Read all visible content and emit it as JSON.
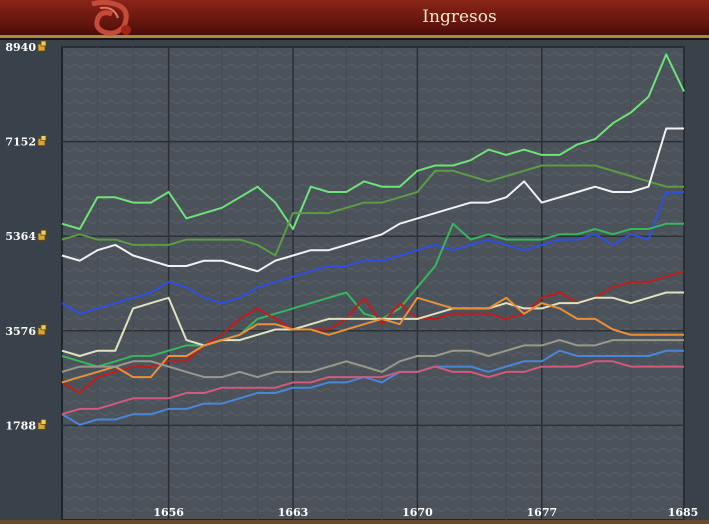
{
  "window": {
    "title": "Ingresos"
  },
  "chart_data": {
    "type": "line",
    "title": "Ingresos",
    "xlabel": "",
    "ylabel": "",
    "xlim": [
      1650,
      1685
    ],
    "ylim": [
      0,
      8940
    ],
    "x_ticks": [
      1656,
      1663,
      1670,
      1677,
      1685
    ],
    "y_ticks": [
      1788,
      3576,
      5364,
      7152,
      8940
    ],
    "y_tick_labels": [
      "1788",
      "3576",
      "5364",
      "7152",
      "8940"
    ],
    "x_tick_labels": [
      "1656",
      "1663",
      "1670",
      "1677",
      "1685"
    ],
    "grid": true,
    "legend": "none",
    "y_icon": "gold-coin-icon",
    "x": [
      1650,
      1651,
      1652,
      1653,
      1654,
      1655,
      1656,
      1657,
      1658,
      1659,
      1660,
      1661,
      1662,
      1663,
      1664,
      1665,
      1666,
      1667,
      1668,
      1669,
      1670,
      1671,
      1672,
      1673,
      1674,
      1675,
      1676,
      1677,
      1678,
      1679,
      1680,
      1681,
      1682,
      1683,
      1684,
      1685
    ],
    "series": [
      {
        "color": "#6fe27a",
        "values": [
          5600,
          5500,
          6100,
          6100,
          6000,
          6000,
          6200,
          5700,
          5800,
          5900,
          6100,
          6300,
          6000,
          5500,
          6300,
          6200,
          6200,
          6400,
          6300,
          6300,
          6600,
          6700,
          6700,
          6800,
          7000,
          6900,
          7000,
          6900,
          6900,
          7100,
          7200,
          7500,
          7700,
          8000,
          8800,
          8100
        ]
      },
      {
        "color": "#5c9c46",
        "values": [
          5300,
          5400,
          5300,
          5300,
          5200,
          5200,
          5200,
          5300,
          5300,
          5300,
          5300,
          5200,
          5000,
          5800,
          5800,
          5800,
          5900,
          6000,
          6000,
          6100,
          6200,
          6600,
          6600,
          6500,
          6400,
          6500,
          6600,
          6700,
          6700,
          6700,
          6700,
          6600,
          6500,
          6400,
          6300,
          6300
        ]
      },
      {
        "color": "#f2f2f2",
        "values": [
          5000,
          4900,
          5100,
          5200,
          5000,
          4900,
          4800,
          4800,
          4900,
          4900,
          4800,
          4700,
          4900,
          5000,
          5100,
          5100,
          5200,
          5300,
          5400,
          5600,
          5700,
          5800,
          5900,
          6000,
          6000,
          6100,
          6400,
          6000,
          6100,
          6200,
          6300,
          6200,
          6200,
          6300,
          7400,
          7400
        ]
      },
      {
        "color": "#2e4fe0",
        "values": [
          4100,
          3900,
          4000,
          4100,
          4200,
          4300,
          4500,
          4400,
          4200,
          4100,
          4200,
          4400,
          4500,
          4600,
          4700,
          4800,
          4800,
          4900,
          4900,
          5000,
          5100,
          5200,
          5100,
          5200,
          5300,
          5200,
          5100,
          5200,
          5300,
          5300,
          5400,
          5200,
          5400,
          5300,
          6200,
          6200
        ]
      },
      {
        "color": "#38b55e",
        "values": [
          3100,
          3000,
          2900,
          3000,
          3100,
          3100,
          3200,
          3300,
          3300,
          3400,
          3500,
          3800,
          3900,
          4000,
          4100,
          4200,
          4300,
          3900,
          3800,
          4000,
          4400,
          4800,
          5600,
          5300,
          5400,
          5300,
          5300,
          5300,
          5400,
          5400,
          5500,
          5400,
          5500,
          5500,
          5600,
          5600
        ]
      },
      {
        "color": "#c01d1d",
        "values": [
          2600,
          2400,
          2700,
          2800,
          2900,
          2900,
          3000,
          3000,
          3300,
          3500,
          3800,
          4000,
          3800,
          3600,
          3600,
          3600,
          3800,
          4200,
          3700,
          4100,
          3800,
          3800,
          3900,
          3900,
          3900,
          3800,
          3900,
          4200,
          4300,
          4100,
          4200,
          4400,
          4500,
          4500,
          4600,
          4700
        ]
      },
      {
        "color": "#e2e2c0",
        "values": [
          3200,
          3100,
          3200,
          3200,
          4000,
          4100,
          4200,
          3400,
          3300,
          3400,
          3400,
          3500,
          3600,
          3600,
          3700,
          3800,
          3800,
          3800,
          3800,
          3800,
          3800,
          3900,
          4000,
          4000,
          4000,
          4100,
          4000,
          4000,
          4100,
          4100,
          4200,
          4200,
          4100,
          4200,
          4300,
          4300
        ]
      },
      {
        "color": "#e8903a",
        "values": [
          2600,
          2700,
          2800,
          2900,
          2700,
          2700,
          3100,
          3100,
          3300,
          3400,
          3500,
          3700,
          3700,
          3600,
          3600,
          3500,
          3600,
          3700,
          3800,
          3700,
          4200,
          4100,
          4000,
          4000,
          4000,
          4200,
          3900,
          4100,
          4000,
          3800,
          3800,
          3600,
          3500,
          3500,
          3500,
          3500
        ]
      },
      {
        "color": "#9a9a8a",
        "values": [
          2800,
          2900,
          2900,
          2900,
          3000,
          3000,
          2900,
          2800,
          2700,
          2700,
          2800,
          2700,
          2800,
          2800,
          2800,
          2900,
          3000,
          2900,
          2800,
          3000,
          3100,
          3100,
          3200,
          3200,
          3100,
          3200,
          3300,
          3300,
          3400,
          3300,
          3300,
          3400,
          3400,
          3400,
          3400,
          3400
        ]
      },
      {
        "color": "#4a86d8",
        "values": [
          2000,
          1800,
          1900,
          1900,
          2000,
          2000,
          2100,
          2100,
          2200,
          2200,
          2300,
          2400,
          2400,
          2500,
          2500,
          2600,
          2600,
          2700,
          2600,
          2800,
          2800,
          2900,
          2900,
          2900,
          2800,
          2900,
          3000,
          3000,
          3200,
          3100,
          3100,
          3100,
          3100,
          3100,
          3200,
          3200
        ]
      },
      {
        "color": "#d25a7a",
        "values": [
          2000,
          2100,
          2100,
          2200,
          2300,
          2300,
          2300,
          2400,
          2400,
          2500,
          2500,
          2500,
          2500,
          2600,
          2600,
          2700,
          2700,
          2700,
          2700,
          2800,
          2800,
          2900,
          2800,
          2800,
          2700,
          2800,
          2800,
          2900,
          2900,
          2900,
          3000,
          3000,
          2900,
          2900,
          2900,
          2900
        ]
      }
    ]
  }
}
